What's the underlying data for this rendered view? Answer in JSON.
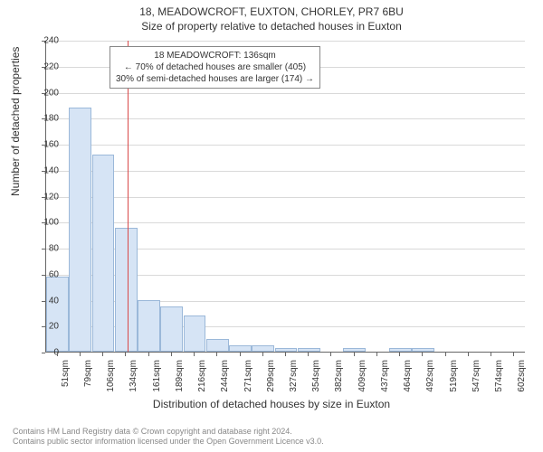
{
  "title_line1": "18, MEADOWCROFT, EUXTON, CHORLEY, PR7 6BU",
  "title_line2": "Size of property relative to detached houses in Euxton",
  "y_axis_label": "Number of detached properties",
  "x_axis_label": "Distribution of detached houses by size in Euxton",
  "footer_line1": "Contains HM Land Registry data © Crown copyright and database right 2024.",
  "footer_line2": "Contains public sector information licensed under the Open Government Licence v3.0.",
  "chart": {
    "type": "histogram",
    "ylim": [
      0,
      240
    ],
    "ytick_step": 20,
    "background_color": "#ffffff",
    "grid_color": "#d9d9d9",
    "axis_color": "#666666",
    "bar_fill": "#d6e4f5",
    "bar_border": "#9bb8d9",
    "ref_line_color": "#d94a4a",
    "ref_line_x_value": 136,
    "x_ticks": [
      "51sqm",
      "79sqm",
      "106sqm",
      "134sqm",
      "161sqm",
      "189sqm",
      "216sqm",
      "244sqm",
      "271sqm",
      "299sqm",
      "327sqm",
      "354sqm",
      "382sqm",
      "409sqm",
      "437sqm",
      "464sqm",
      "492sqm",
      "519sqm",
      "547sqm",
      "574sqm",
      "602sqm"
    ],
    "bar_values": [
      58,
      188,
      152,
      95,
      40,
      35,
      28,
      10,
      5,
      5,
      3,
      3,
      0,
      3,
      0,
      3,
      3,
      0,
      0,
      0,
      0
    ],
    "annotation": {
      "line1": "18 MEADOWCROFT: 136sqm",
      "line2": "← 70% of detached houses are smaller (405)",
      "line3": "30% of semi-detached houses are larger (174) →"
    }
  }
}
